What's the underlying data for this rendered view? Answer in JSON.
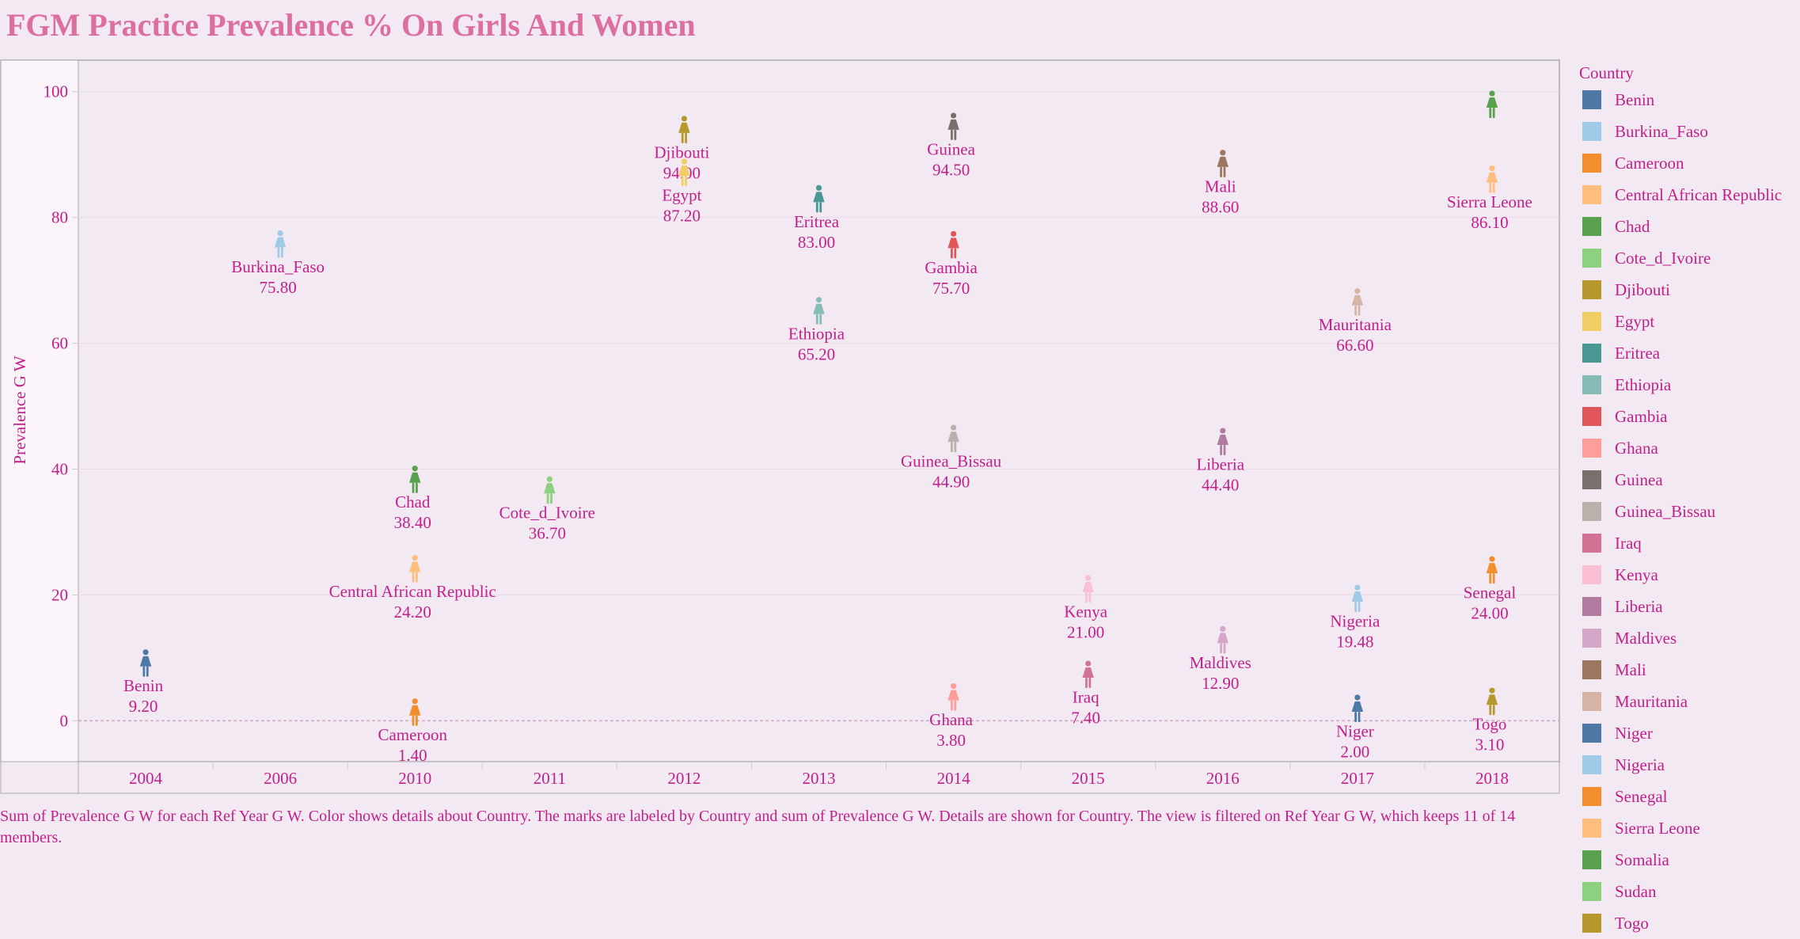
{
  "chart_data": {
    "type": "scatter",
    "title": "FGM Practice Prevalence % On Girls And Women",
    "ylabel": "Prevalence G W",
    "xlabel": "",
    "ylim": [
      -6.5,
      105
    ],
    "yticks": [
      0,
      20,
      40,
      60,
      80,
      100
    ],
    "categories": [
      "2004",
      "2006",
      "2010",
      "2011",
      "2012",
      "2013",
      "2014",
      "2015",
      "2016",
      "2017",
      "2018"
    ],
    "legend_title": "Country",
    "legend_placement": "right",
    "grid": true,
    "marker": "female-figure-icon",
    "points": [
      {
        "x": "2004",
        "y": 9.2,
        "country": "Benin",
        "label": "9.20"
      },
      {
        "x": "2006",
        "y": 75.8,
        "country": "Burkina_Faso",
        "label": "75.80"
      },
      {
        "x": "2010",
        "y": 1.4,
        "country": "Cameroon",
        "label": "1.40"
      },
      {
        "x": "2010",
        "y": 24.2,
        "country": "Central African Republic",
        "label": "24.20"
      },
      {
        "x": "2010",
        "y": 38.4,
        "country": "Chad",
        "label": "38.40"
      },
      {
        "x": "2011",
        "y": 36.7,
        "country": "Cote_d_Ivoire",
        "label": "36.70"
      },
      {
        "x": "2012",
        "y": 94.0,
        "country": "Djibouti",
        "label": "94.00"
      },
      {
        "x": "2012",
        "y": 87.2,
        "country": "Egypt",
        "label": "87.20"
      },
      {
        "x": "2013",
        "y": 83.0,
        "country": "Eritrea",
        "label": "83.00"
      },
      {
        "x": "2013",
        "y": 65.2,
        "country": "Ethiopia",
        "label": "65.20"
      },
      {
        "x": "2014",
        "y": 94.5,
        "country": "Guinea",
        "label": "94.50"
      },
      {
        "x": "2014",
        "y": 75.7,
        "country": "Gambia",
        "label": "75.70"
      },
      {
        "x": "2014",
        "y": 44.9,
        "country": "Guinea_Bissau",
        "label": "44.90"
      },
      {
        "x": "2014",
        "y": 3.8,
        "country": "Ghana",
        "label": "3.80"
      },
      {
        "x": "2015",
        "y": 21.0,
        "country": "Kenya",
        "label": "21.00"
      },
      {
        "x": "2015",
        "y": 7.4,
        "country": "Iraq",
        "label": "7.40"
      },
      {
        "x": "2016",
        "y": 88.6,
        "country": "Mali",
        "label": "88.60"
      },
      {
        "x": "2016",
        "y": 44.4,
        "country": "Liberia",
        "label": "44.40"
      },
      {
        "x": "2016",
        "y": 12.9,
        "country": "Maldives",
        "label": "12.90"
      },
      {
        "x": "2017",
        "y": 66.6,
        "country": "Mauritania",
        "label": "66.60"
      },
      {
        "x": "2017",
        "y": 19.48,
        "country": "Nigeria",
        "label": "19.48"
      },
      {
        "x": "2017",
        "y": 2.0,
        "country": "Niger",
        "label": "2.00"
      },
      {
        "x": "2018",
        "y": 98.0,
        "country": "Somalia",
        "label": ""
      },
      {
        "x": "2018",
        "y": 86.1,
        "country": "Sierra Leone",
        "label": "86.10"
      },
      {
        "x": "2018",
        "y": 24.0,
        "country": "Senegal",
        "label": "24.00"
      },
      {
        "x": "2018",
        "y": 3.1,
        "country": "Togo",
        "label": "3.10"
      }
    ],
    "legend": [
      {
        "name": "Benin",
        "color": "#4e79a7"
      },
      {
        "name": "Burkina_Faso",
        "color": "#a0cbe8"
      },
      {
        "name": "Cameroon",
        "color": "#f28e2b"
      },
      {
        "name": "Central African Republic",
        "color": "#ffbe7d"
      },
      {
        "name": "Chad",
        "color": "#59a14f"
      },
      {
        "name": "Cote_d_Ivoire",
        "color": "#8cd17d"
      },
      {
        "name": "Djibouti",
        "color": "#b6992d"
      },
      {
        "name": "Egypt",
        "color": "#f1ce63"
      },
      {
        "name": "Eritrea",
        "color": "#499894"
      },
      {
        "name": "Ethiopia",
        "color": "#86bcb6"
      },
      {
        "name": "Gambia",
        "color": "#e15759"
      },
      {
        "name": "Ghana",
        "color": "#ff9d9a"
      },
      {
        "name": "Guinea",
        "color": "#79706e"
      },
      {
        "name": "Guinea_Bissau",
        "color": "#bab0ac"
      },
      {
        "name": "Iraq",
        "color": "#d37295"
      },
      {
        "name": "Kenya",
        "color": "#fabfd2"
      },
      {
        "name": "Liberia",
        "color": "#b07aa1"
      },
      {
        "name": "Maldives",
        "color": "#d4a6c8"
      },
      {
        "name": "Mali",
        "color": "#9d7660"
      },
      {
        "name": "Mauritania",
        "color": "#d7b5a6"
      },
      {
        "name": "Niger",
        "color": "#4e79a7"
      },
      {
        "name": "Nigeria",
        "color": "#a0cbe8"
      },
      {
        "name": "Senegal",
        "color": "#f28e2b"
      },
      {
        "name": "Sierra Leone",
        "color": "#ffbe7d"
      },
      {
        "name": "Somalia",
        "color": "#59a14f"
      },
      {
        "name": "Sudan",
        "color": "#8cd17d"
      },
      {
        "name": "Togo",
        "color": "#b6992d"
      }
    ]
  },
  "caption": "Sum of Prevalence G W for each Ref Year G W.  Color shows details about Country.  The marks are labeled by Country and sum of Prevalence G W.  Details are shown for Country. The view is filtered on Ref Year G W, which keeps 11 of 14 members."
}
